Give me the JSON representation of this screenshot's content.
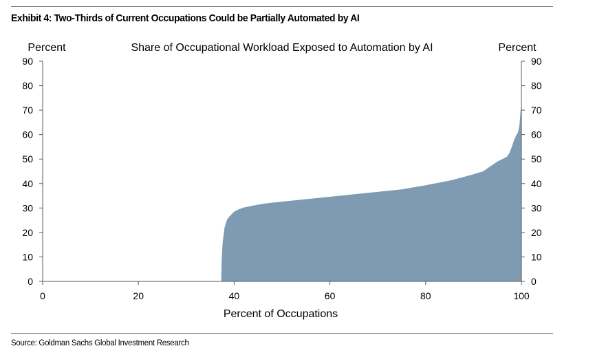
{
  "exhibit_title": "Exhibit 4: Two-Thirds of Current Occupations Could be Partially Automated by AI",
  "source": "Source: Goldman Sachs Global Investment Research",
  "colors": {
    "area_fill": "#7f9bb3",
    "axis": "#595959",
    "rule": "#7f7f7f"
  },
  "chart_data": {
    "type": "area",
    "title": "Share of Occupational Workload Exposed to Automation by AI",
    "xlabel": "Percent of Occupations",
    "ylabel_left": "Percent",
    "ylabel_right": "Percent",
    "xlim": [
      0,
      100
    ],
    "ylim": [
      0,
      90
    ],
    "x_ticks": [
      0,
      20,
      40,
      60,
      80,
      100
    ],
    "y_ticks": [
      0,
      10,
      20,
      30,
      40,
      50,
      60,
      70,
      80,
      90
    ],
    "grid": false,
    "series": [
      {
        "x": [
          0,
          37.3,
          37.4,
          37.6,
          37.8,
          38.0,
          38.3,
          38.6,
          39.0,
          39.5,
          40.0,
          41.0,
          42.0,
          44.0,
          46.0,
          48.0,
          50.0,
          55.0,
          60.0,
          65.0,
          70.0,
          75.0,
          80.0,
          85.0,
          88.0,
          90.0,
          92.0,
          93.5,
          95.0,
          96.0,
          97.0,
          97.5,
          98.0,
          98.5,
          99.0,
          99.3,
          99.6,
          99.8,
          100.0
        ],
        "y": [
          0,
          0,
          9,
          16,
          19,
          22,
          24,
          25.5,
          26.5,
          27.5,
          28.5,
          29.5,
          30.2,
          31.0,
          31.7,
          32.2,
          32.6,
          33.6,
          34.6,
          35.6,
          36.6,
          37.6,
          39.3,
          41.2,
          42.7,
          43.8,
          45.0,
          47.0,
          49.0,
          50.0,
          51.0,
          52.5,
          55.0,
          58.0,
          60.0,
          61.0,
          64.0,
          69.0,
          73.0
        ]
      }
    ]
  }
}
